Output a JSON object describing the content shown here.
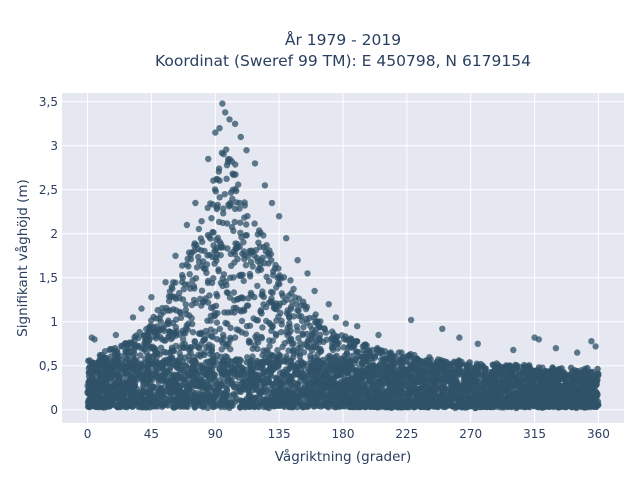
{
  "chart_data": {
    "type": "scatter",
    "title_line1": "År 1979 - 2019",
    "title_line2": "Koordinat (Sweref 99 TM): E 450798, N 6179154",
    "xlabel": "Vågriktning (grader)",
    "ylabel": "Signifikant våghöjd (m)",
    "xlim": [
      -18,
      378
    ],
    "ylim": [
      -0.15,
      3.6
    ],
    "x_ticks": [
      0,
      45,
      90,
      135,
      180,
      225,
      270,
      315,
      360
    ],
    "x_tick_labels": [
      "0",
      "45",
      "90",
      "135",
      "180",
      "225",
      "270",
      "315",
      "360"
    ],
    "y_ticks": [
      0,
      0.5,
      1,
      1.5,
      2,
      2.5,
      3,
      3.5
    ],
    "y_tick_labels": [
      "0",
      "0,5",
      "1",
      "1,5",
      "2",
      "2,5",
      "3",
      "3,5"
    ],
    "grid": true,
    "plot_bgcolor": "#e5e8f0",
    "marker_color": "#2f5268",
    "envelope_x": [
      0,
      10,
      20,
      30,
      40,
      50,
      60,
      70,
      80,
      85,
      90,
      95,
      100,
      105,
      110,
      115,
      120,
      130,
      140,
      150,
      160,
      170,
      180,
      190,
      200,
      220,
      240,
      260,
      280,
      300,
      320,
      340,
      360
    ],
    "envelope_upper_y": [
      0.55,
      0.65,
      0.72,
      0.82,
      0.95,
      1.15,
      1.45,
      1.75,
      2.15,
      2.45,
      2.75,
      2.95,
      3.0,
      2.8,
      2.55,
      2.3,
      2.1,
      1.8,
      1.55,
      1.3,
      1.1,
      0.95,
      0.85,
      0.78,
      0.72,
      0.66,
      0.6,
      0.55,
      0.52,
      0.5,
      0.48,
      0.46,
      0.45
    ],
    "sample_points": [
      {
        "x": 95,
        "y": 3.48
      },
      {
        "x": 97,
        "y": 3.38
      },
      {
        "x": 100,
        "y": 3.3
      },
      {
        "x": 104,
        "y": 3.25
      },
      {
        "x": 93,
        "y": 3.2
      },
      {
        "x": 90,
        "y": 3.15
      },
      {
        "x": 108,
        "y": 3.1
      },
      {
        "x": 112,
        "y": 2.95
      },
      {
        "x": 85,
        "y": 2.85
      },
      {
        "x": 118,
        "y": 2.8
      },
      {
        "x": 76,
        "y": 2.35
      },
      {
        "x": 125,
        "y": 2.55
      },
      {
        "x": 70,
        "y": 2.1
      },
      {
        "x": 130,
        "y": 2.35
      },
      {
        "x": 135,
        "y": 2.2
      },
      {
        "x": 140,
        "y": 1.95
      },
      {
        "x": 148,
        "y": 1.7
      },
      {
        "x": 155,
        "y": 1.55
      },
      {
        "x": 160,
        "y": 1.35
      },
      {
        "x": 170,
        "y": 1.2
      },
      {
        "x": 175,
        "y": 1.05
      },
      {
        "x": 182,
        "y": 0.98
      },
      {
        "x": 190,
        "y": 0.95
      },
      {
        "x": 205,
        "y": 0.85
      },
      {
        "x": 228,
        "y": 1.02
      },
      {
        "x": 250,
        "y": 0.92
      },
      {
        "x": 262,
        "y": 0.82
      },
      {
        "x": 275,
        "y": 0.75
      },
      {
        "x": 300,
        "y": 0.68
      },
      {
        "x": 315,
        "y": 0.82
      },
      {
        "x": 318,
        "y": 0.8
      },
      {
        "x": 330,
        "y": 0.7
      },
      {
        "x": 345,
        "y": 0.65
      },
      {
        "x": 355,
        "y": 0.78
      },
      {
        "x": 358,
        "y": 0.72
      },
      {
        "x": 3,
        "y": 0.82
      },
      {
        "x": 5,
        "y": 0.8
      },
      {
        "x": 20,
        "y": 0.85
      },
      {
        "x": 32,
        "y": 1.05
      },
      {
        "x": 38,
        "y": 1.15
      },
      {
        "x": 45,
        "y": 1.28
      },
      {
        "x": 55,
        "y": 1.45
      },
      {
        "x": 62,
        "y": 1.75
      }
    ]
  }
}
